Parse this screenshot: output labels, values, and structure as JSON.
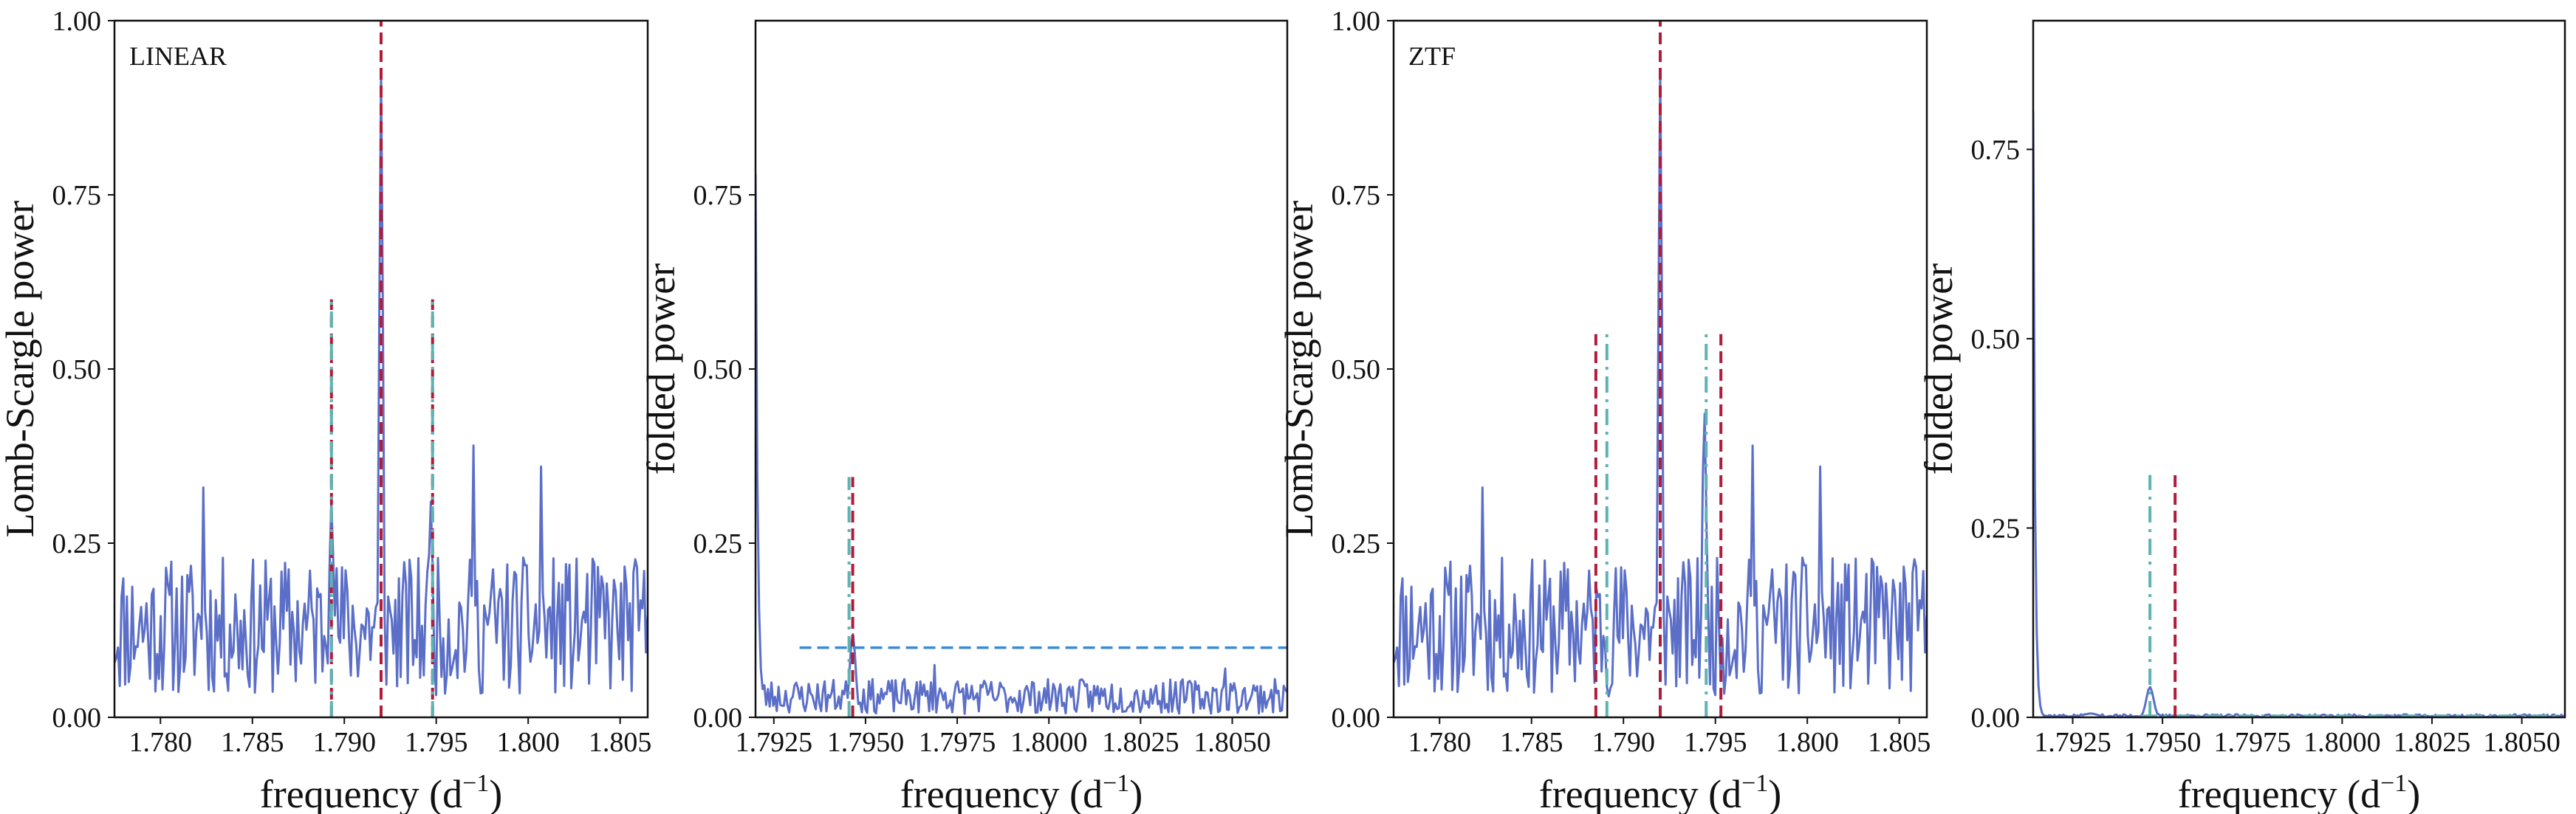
{
  "chart_data": [
    {
      "type": "line",
      "tag": "LINEAR",
      "xlabel": "frequency (d",
      "xlabel_sup": "−1",
      "xlabel_close": ")",
      "ylabel": "Lomb-Scargle power",
      "xlim": [
        1.7775,
        1.8065
      ],
      "ylim": [
        0,
        1
      ],
      "xticks": [
        1.78,
        1.785,
        1.79,
        1.795,
        1.8,
        1.805
      ],
      "xtick_labels": [
        "1.780",
        "1.785",
        "1.790",
        "1.795",
        "1.800",
        "1.805"
      ],
      "yticks": [
        0,
        0.25,
        0.5,
        0.75,
        1.0
      ],
      "ytick_labels": [
        "0.00",
        "0.25",
        "0.50",
        "0.75",
        "1.00"
      ],
      "grid": false,
      "series": [
        {
          "style": "noise",
          "seed": 11,
          "n": 300,
          "base": 0.13,
          "amp": 0.1,
          "floor": 0.02,
          "ceil": 0.4,
          "peaks": [
            {
              "x": 1.792,
              "y": 0.93,
              "w": 0.0001
            },
            {
              "x": 1.7893,
              "y": 0.31,
              "w": 0.00012
            },
            {
              "x": 1.7947,
              "y": 0.31,
              "w": 0.00012
            }
          ],
          "bumps": [
            {
              "x": 1.7823,
              "y": 0.33
            },
            {
              "x": 1.797,
              "y": 0.39
            },
            {
              "x": 1.8007,
              "y": 0.36
            }
          ],
          "color": "#5b6fc8"
        }
      ],
      "vlines": [
        {
          "x": 1.792,
          "y1": 0.0,
          "y2": 1.0,
          "color": "#b01c3a",
          "dash": "dashed"
        },
        {
          "x": 1.7893,
          "y1": 0.0,
          "y2": 0.6,
          "color": "#b01c3a",
          "dash": "dashed"
        },
        {
          "x": 1.7893,
          "y1": 0.0,
          "y2": 0.6,
          "color": "#5fb3b3",
          "dash": "dashdot"
        },
        {
          "x": 1.7948,
          "y1": 0.0,
          "y2": 0.6,
          "color": "#b01c3a",
          "dash": "dashed"
        },
        {
          "x": 1.7948,
          "y1": 0.0,
          "y2": 0.6,
          "color": "#5fb3b3",
          "dash": "dashdot"
        }
      ],
      "hlines": []
    },
    {
      "type": "line",
      "tag": "",
      "xlabel": "frequency (d",
      "xlabel_sup": "−1",
      "xlabel_close": ")",
      "ylabel": "folded power",
      "xlim": [
        1.792,
        1.8065
      ],
      "ylim": [
        0,
        1
      ],
      "xticks": [
        1.7925,
        1.795,
        1.7975,
        1.8,
        1.8025,
        1.805
      ],
      "xtick_labels": [
        "1.7925",
        "1.7950",
        "1.7975",
        "1.8000",
        "1.8025",
        "1.8050"
      ],
      "yticks": [
        0,
        0.25,
        0.5,
        0.75
      ],
      "ytick_labels": [
        "0.00",
        "0.25",
        "0.50",
        "0.75"
      ],
      "grid": false,
      "series": [
        {
          "style": "noise",
          "seed": 23,
          "n": 300,
          "base": 0.03,
          "amp": 0.025,
          "floor": 0.0,
          "ceil": 0.08,
          "decay": {
            "y0": 0.78,
            "tau": 6e-05
          },
          "peaks": [
            {
              "x": 1.79465,
              "y": 0.12,
              "w": 8e-05
            }
          ],
          "bumps": [
            {
              "x": 1.7969,
              "y": 0.075
            },
            {
              "x": 1.8048,
              "y": 0.07
            }
          ],
          "color": "#5b6fc8"
        }
      ],
      "vlines": [
        {
          "x": 1.79465,
          "y1": 0.0,
          "y2": 0.345,
          "color": "#b01c3a",
          "dash": "dashed"
        },
        {
          "x": 1.79455,
          "y1": 0.0,
          "y2": 0.345,
          "color": "#5fb3b3",
          "dash": "dashdot"
        }
      ],
      "hlines": [
        {
          "y": 0.1,
          "x1": 1.7932,
          "x2": 1.8065,
          "color": "#3a8ad6",
          "dash": "dashed"
        }
      ]
    },
    {
      "type": "line",
      "tag": "ZTF",
      "xlabel": "frequency (d",
      "xlabel_sup": "−1",
      "xlabel_close": ")",
      "ylabel": "Lomb-Scargle power",
      "xlim": [
        1.7775,
        1.8065
      ],
      "ylim": [
        0,
        1
      ],
      "xticks": [
        1.78,
        1.785,
        1.79,
        1.795,
        1.8,
        1.805
      ],
      "xtick_labels": [
        "1.780",
        "1.785",
        "1.790",
        "1.795",
        "1.800",
        "1.805"
      ],
      "yticks": [
        0,
        0.25,
        0.5,
        0.75,
        1.0
      ],
      "ytick_labels": [
        "0.00",
        "0.25",
        "0.50",
        "0.75",
        "1.00"
      ],
      "grid": false,
      "series": [
        {
          "style": "noise",
          "seed": 11,
          "n": 300,
          "base": 0.13,
          "amp": 0.1,
          "floor": 0.02,
          "ceil": 0.4,
          "peaks": [
            {
              "x": 1.792,
              "y": 0.93,
              "w": 0.0001
            },
            {
              "x": 1.7944,
              "y": 0.44,
              "w": 0.00012
            }
          ],
          "bumps": [
            {
              "x": 1.7823,
              "y": 0.33
            },
            {
              "x": 1.797,
              "y": 0.39
            },
            {
              "x": 1.8007,
              "y": 0.36
            }
          ],
          "color": "#5b6fc8"
        }
      ],
      "vlines": [
        {
          "x": 1.792,
          "y1": 0.0,
          "y2": 1.0,
          "color": "#b01c3a",
          "dash": "dashed"
        },
        {
          "x": 1.7885,
          "y1": 0.0,
          "y2": 0.55,
          "color": "#b01c3a",
          "dash": "dashed"
        },
        {
          "x": 1.7891,
          "y1": 0.0,
          "y2": 0.55,
          "color": "#5fb3b3",
          "dash": "dashdot"
        },
        {
          "x": 1.7945,
          "y1": 0.0,
          "y2": 0.55,
          "color": "#5fb3b3",
          "dash": "dashdot"
        },
        {
          "x": 1.7953,
          "y1": 0.0,
          "y2": 0.55,
          "color": "#b01c3a",
          "dash": "dashed"
        }
      ],
      "hlines": []
    },
    {
      "type": "line",
      "tag": "",
      "xlabel": "frequency (d",
      "xlabel_sup": "−1",
      "xlabel_close": ")",
      "ylabel": "folded power",
      "xlim": [
        1.7914,
        1.8062
      ],
      "ylim": [
        0,
        0.92
      ],
      "xticks": [
        1.7925,
        1.795,
        1.7975,
        1.8,
        1.8025,
        1.805
      ],
      "xtick_labels": [
        "1.7925",
        "1.7950",
        "1.7975",
        "1.8000",
        "1.8025",
        "1.8050"
      ],
      "yticks": [
        0,
        0.25,
        0.5,
        0.75
      ],
      "ytick_labels": [
        "0.00",
        "0.25",
        "0.50",
        "0.75"
      ],
      "grid": false,
      "series": [
        {
          "style": "noise",
          "seed": 37,
          "n": 300,
          "base": 0.002,
          "amp": 0.002,
          "floor": 0.0,
          "ceil": 0.006,
          "decay": {
            "y0": 0.8,
            "tau": 5e-05
          },
          "peaks": [
            {
              "x": 1.79465,
              "y": 0.04,
              "w": 0.0001
            },
            {
              "x": 1.793,
              "y": 0.005,
              "w": 0.0002
            }
          ],
          "bumps": [],
          "color": "#5b6fc8"
        }
      ],
      "vlines": [
        {
          "x": 1.79465,
          "y1": 0.0,
          "y2": 0.32,
          "color": "#5fb3b3",
          "dash": "dashdot"
        },
        {
          "x": 1.79535,
          "y1": 0.0,
          "y2": 0.32,
          "color": "#b01c3a",
          "dash": "dashed"
        }
      ],
      "hlines": [
        {
          "y": 0.002,
          "x1": 1.7944,
          "x2": 1.8062,
          "color": "#5fb3b3",
          "dash": "dashdot"
        }
      ]
    }
  ]
}
